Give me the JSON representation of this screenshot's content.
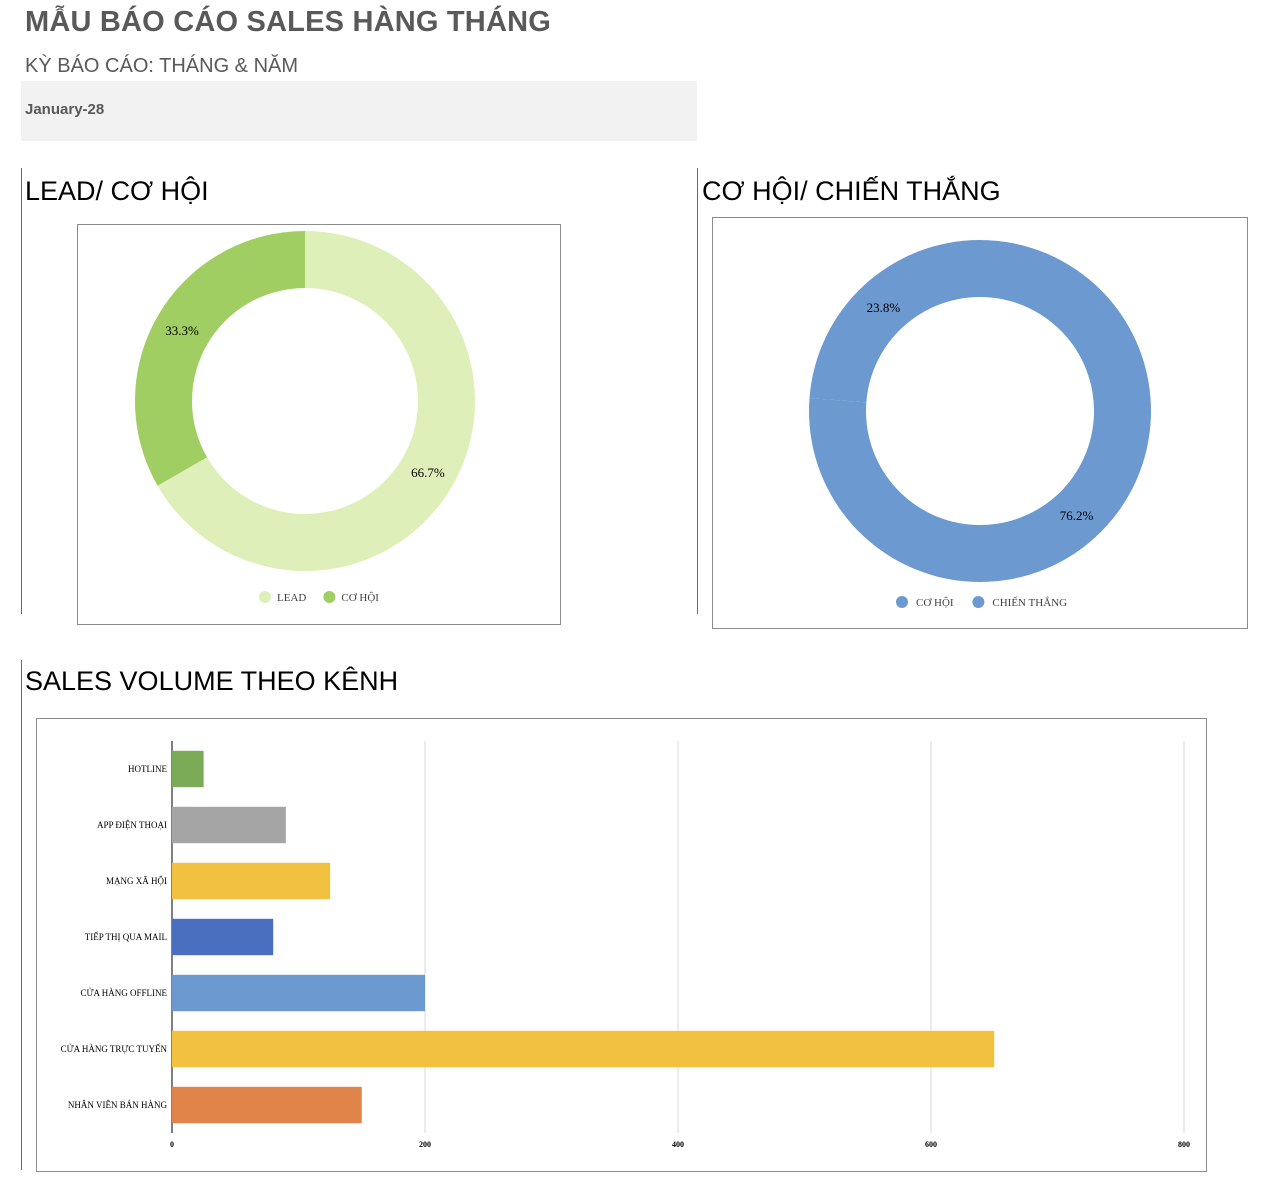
{
  "header": {
    "title": "MẪU BÁO CÁO SALES HÀNG THÁNG",
    "subtitle": "KỲ BÁO CÁO: THÁNG & NĂM",
    "period": "January-28"
  },
  "colors": {
    "lead": "#dfefb9",
    "co_hoi_green": "#a0ce63",
    "donut_blue": "#6b99d0",
    "accent_line": "#548235"
  },
  "chart_data": [
    {
      "id": "lead-co-hoi",
      "type": "pie",
      "title": "LEAD/ CƠ HỘI",
      "legend_position": "bottom",
      "slices": [
        {
          "name": "LEAD",
          "value": 66.7,
          "label": "66.7%",
          "color": "#dfefb9"
        },
        {
          "name": "CƠ HỘI",
          "value": 33.3,
          "label": "33.3%",
          "color": "#a0ce63"
        }
      ]
    },
    {
      "id": "co-hoi-chien-thang",
      "type": "pie",
      "title": "CƠ HỘI/ CHIẾN THẮNG",
      "legend_position": "bottom",
      "slices": [
        {
          "name": "CƠ HỘI",
          "value": 76.2,
          "label": "76.2%",
          "color": "#6b99d0"
        },
        {
          "name": "CHIẾN THẮNG",
          "value": 23.8,
          "label": "23.8%",
          "color": "#6b99d0"
        }
      ]
    },
    {
      "id": "sales-volume",
      "type": "bar",
      "orientation": "horizontal",
      "title": "SALES VOLUME THEO KÊNH",
      "categories": [
        "HOTLINE",
        "APP ĐIỆN THOẠI",
        "MẠNG XÃ HỘI",
        "TIẾP THỊ QUA MAIL",
        "CỬA HÀNG OFFLINE",
        "CỬA HÀNG TRỰC TUYẾN",
        "NHÂN VIÊN BÁN HÀNG"
      ],
      "values": [
        25,
        90,
        125,
        80,
        200,
        650,
        150
      ],
      "colors": [
        "#7bab56",
        "#a5a5a5",
        "#f2c13f",
        "#4a6fbf",
        "#6b99d0",
        "#f2c13f",
        "#e0844a"
      ],
      "xlim": [
        0,
        800
      ],
      "xticks": [
        0,
        200,
        400,
        600,
        800
      ],
      "grid": true
    }
  ]
}
